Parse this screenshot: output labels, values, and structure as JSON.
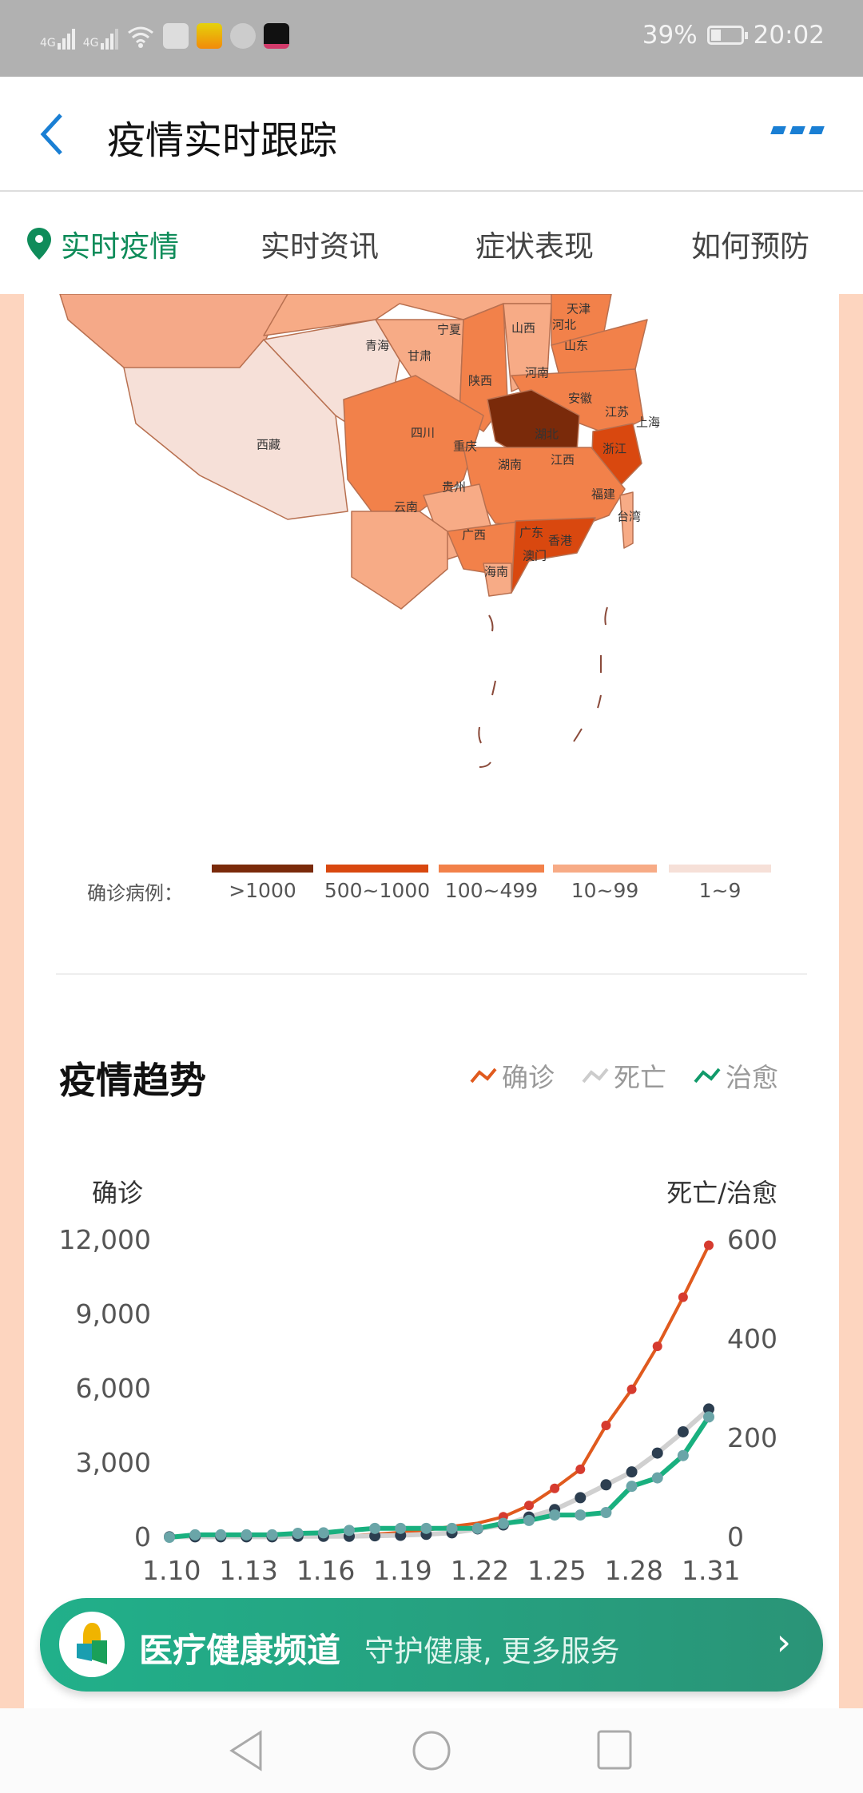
{
  "status_bar": {
    "network_1": "4G",
    "network_2": "4G",
    "battery": "39%",
    "time": "20:02",
    "icons": [
      "signal-icon",
      "signal-icon",
      "wifi-icon",
      "app-icon",
      "mail-icon",
      "facebook-icon",
      "tiktok-icon"
    ]
  },
  "header": {
    "title": "疫情实时跟踪",
    "back_icon": "chevron-left-icon",
    "more_icon": "more-icon",
    "accent": "#1a7fd4"
  },
  "tabs": [
    {
      "label": "实时疫情",
      "active": true,
      "icon": "location-pin-icon"
    },
    {
      "label": "实时资讯",
      "active": false
    },
    {
      "label": "症状表现",
      "active": false
    },
    {
      "label": "如何预防",
      "active": false
    }
  ],
  "map": {
    "provinces": [
      "天津",
      "河北",
      "山西",
      "宁夏",
      "青海",
      "甘肃",
      "山东",
      "河南",
      "陕西",
      "安徽",
      "江苏",
      "上海",
      "四川",
      "湖北",
      "重庆",
      "浙江",
      "西藏",
      "湖南",
      "江西",
      "贵州",
      "福建",
      "云南",
      "台湾",
      "广西",
      "广东",
      "香港",
      "澳门",
      "海南"
    ],
    "legend_title": "确诊病例：",
    "legend": [
      {
        "label": ">1000",
        "color": "#7a2a0a"
      },
      {
        "label": "500~1000",
        "color": "#d9480f"
      },
      {
        "label": "100~499",
        "color": "#f2814a"
      },
      {
        "label": "10~99",
        "color": "#f7ab86"
      },
      {
        "label": "1~9",
        "color": "#f6e0d8"
      }
    ]
  },
  "trend": {
    "title": "疫情趋势",
    "legend": [
      {
        "label": "确诊",
        "color": "#e05a1e"
      },
      {
        "label": "死亡",
        "color": "#cccccc"
      },
      {
        "label": "治愈",
        "color": "#119a6a"
      }
    ]
  },
  "chart_data": {
    "type": "line",
    "left_axis_label": "确诊",
    "right_axis_label": "死亡/治愈",
    "x": [
      "1.10",
      "1.11",
      "1.12",
      "1.13",
      "1.14",
      "1.15",
      "1.16",
      "1.17",
      "1.18",
      "1.19",
      "1.20",
      "1.21",
      "1.22",
      "1.23",
      "1.24",
      "1.25",
      "1.26",
      "1.27",
      "1.28",
      "1.29",
      "1.30",
      "1.31"
    ],
    "x_tick_labels": [
      "1.10",
      "1.13",
      "1.16",
      "1.19",
      "1.22",
      "1.25",
      "1.28",
      "1.31"
    ],
    "left_ylim": [
      0,
      12000
    ],
    "left_ticks": [
      "0",
      "3,000",
      "6,000",
      "9,000",
      "12,000"
    ],
    "right_ylim": [
      0,
      600
    ],
    "right_ticks": [
      "0",
      "200",
      "400",
      "600"
    ],
    "grid": false,
    "series": [
      {
        "name": "确诊",
        "axis": "left",
        "color": "#e05a1e",
        "marker_color": "#d63b2f",
        "values": [
          41,
          41,
          41,
          41,
          41,
          41,
          45,
          62,
          121,
          198,
          291,
          440,
          571,
          830,
          1287,
          1975,
          2744,
          4515,
          5974,
          7711,
          9692,
          11791
        ]
      },
      {
        "name": "死亡",
        "axis": "right",
        "color": "#d0d0d0",
        "marker_color": "#2c3e50",
        "values": [
          1,
          1,
          1,
          1,
          1,
          2,
          2,
          2,
          3,
          4,
          6,
          9,
          17,
          25,
          41,
          56,
          80,
          106,
          132,
          170,
          213,
          259
        ]
      },
      {
        "name": "治愈",
        "axis": "right",
        "color": "#19b07f",
        "marker_color": "#6aa5a8",
        "values": [
          0,
          5,
          5,
          5,
          5,
          8,
          9,
          14,
          18,
          18,
          18,
          18,
          18,
          28,
          34,
          45,
          45,
          50,
          103,
          120,
          165,
          243
        ]
      }
    ]
  },
  "banner": {
    "title": "医疗健康频道",
    "subtitle": "守护健康, 更多服务",
    "chevron": "›"
  },
  "nav_bar": {
    "icons": [
      "back-triangle-icon",
      "home-circle-icon",
      "recents-square-icon"
    ]
  }
}
